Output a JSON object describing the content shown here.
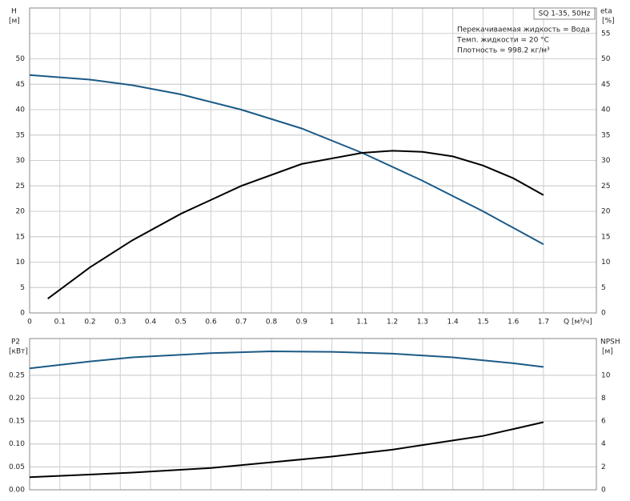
{
  "chart_data": [
    {
      "type": "line",
      "subtitle": "SQ 1-35, 50Hz",
      "annotations": [
        "Перекачиваемая жидкость = Вода",
        "Темп. жидкости = 20 °C",
        "Плотность = 998.2 кг/м³"
      ],
      "ylabel": "H",
      "yunit": "[м]",
      "y2label": "eta",
      "y2unit": "[%]",
      "xlabel": "Q [м³/ч]",
      "xlim": [
        0,
        1.875
      ],
      "xticks": [
        0,
        0.1,
        0.2,
        0.3,
        0.4,
        0.5,
        0.6,
        0.7,
        0.8,
        0.9,
        1.0,
        1.1,
        1.2,
        1.3,
        1.4,
        1.5,
        1.6,
        1.7
      ],
      "ylim": [
        0,
        60
      ],
      "yticks": [
        0,
        5,
        10,
        15,
        20,
        25,
        30,
        35,
        40,
        45,
        50
      ],
      "y2lim": [
        0,
        60
      ],
      "y2ticks": [
        0,
        5,
        10,
        15,
        20,
        25,
        30,
        35,
        40,
        45,
        50,
        55
      ],
      "grid": true,
      "series": [
        {
          "color": "#1b5a86",
          "x": [
            0,
            0.2,
            0.34,
            0.5,
            0.7,
            0.9,
            1.1,
            1.3,
            1.5,
            1.7
          ],
          "values": [
            46.8,
            45.9,
            44.8,
            43,
            40,
            36.3,
            31.5,
            26,
            20,
            13.5
          ]
        },
        {
          "color": "#000000",
          "axis": "y2",
          "x": [
            0.06,
            0.2,
            0.34,
            0.5,
            0.7,
            0.9,
            1.1,
            1.2,
            1.3,
            1.4,
            1.5,
            1.6,
            1.7
          ],
          "values": [
            2.8,
            9,
            14.3,
            19.5,
            25,
            29.3,
            31.5,
            31.9,
            31.7,
            30.8,
            29,
            26.5,
            23.2
          ]
        }
      ]
    },
    {
      "type": "line",
      "ylabel": "P2",
      "yunit": "[кВт]",
      "y2label": "NPSH",
      "y2unit": "[м]",
      "xlim": [
        0,
        1.875
      ],
      "xticks": [
        0,
        0.1,
        0.2,
        0.3,
        0.4,
        0.5,
        0.6,
        0.7,
        0.8,
        0.9,
        1.0,
        1.1,
        1.2,
        1.3,
        1.4,
        1.5,
        1.6,
        1.7
      ],
      "ylim": [
        0,
        0.33
      ],
      "yticks": [
        {
          "value": 0,
          "label": "0.00"
        },
        0.05,
        {
          "value": 0.1,
          "label": "0.10"
        },
        0.15,
        {
          "value": 0.2,
          "label": "0.20"
        },
        0.25
      ],
      "y2lim": [
        0,
        13.2
      ],
      "y2ticks": [
        0,
        2,
        4,
        6,
        8,
        10
      ],
      "grid": true,
      "series": [
        {
          "color": "#1b5a86",
          "x": [
            0,
            0.2,
            0.34,
            0.6,
            0.8,
            1.0,
            1.2,
            1.4,
            1.6,
            1.7
          ],
          "values": [
            0.265,
            0.28,
            0.289,
            0.298,
            0.302,
            0.301,
            0.297,
            0.289,
            0.276,
            0.268
          ]
        },
        {
          "color": "#000000",
          "axis": "y2",
          "x": [
            0,
            0.34,
            0.6,
            0.8,
            1.0,
            1.2,
            1.4,
            1.5,
            1.6,
            1.7
          ],
          "values": [
            1.1,
            1.5,
            1.9,
            2.4,
            2.9,
            3.5,
            4.3,
            4.7,
            5.3,
            5.9
          ]
        }
      ]
    }
  ]
}
